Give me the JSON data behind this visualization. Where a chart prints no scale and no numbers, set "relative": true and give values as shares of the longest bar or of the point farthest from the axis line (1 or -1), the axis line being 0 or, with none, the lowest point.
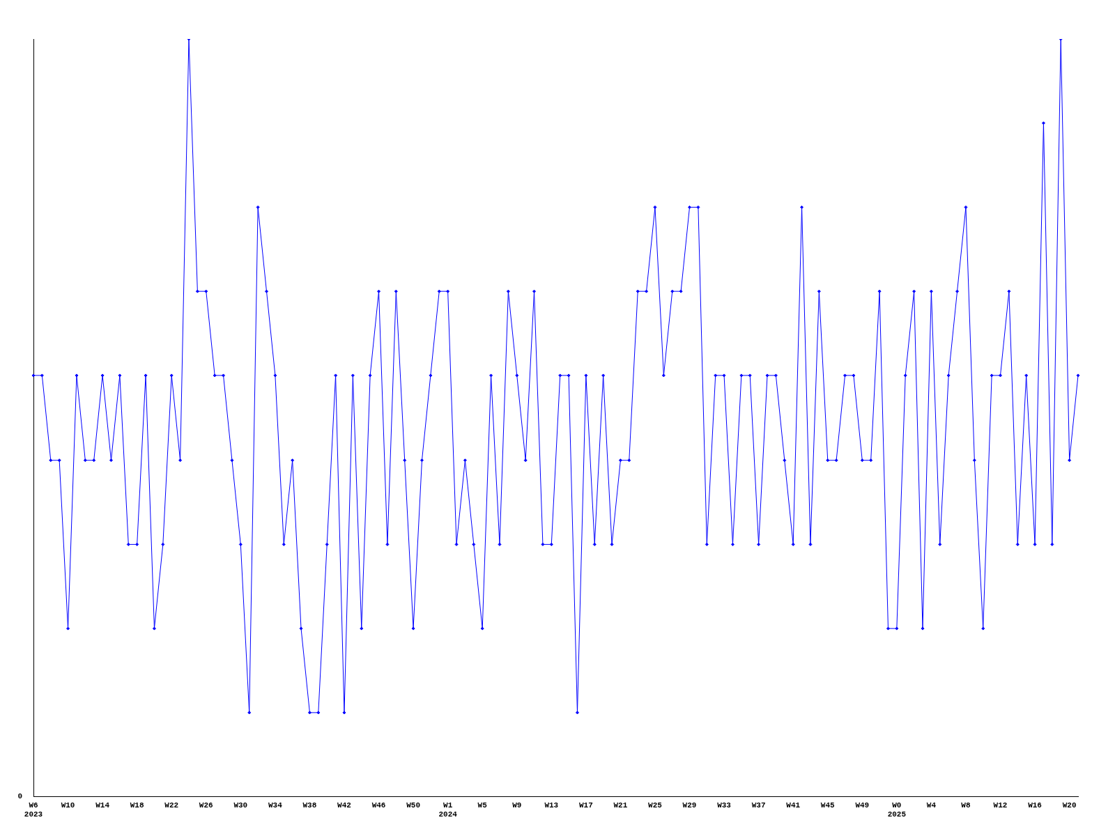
{
  "chart_data": {
    "type": "line",
    "relative": true,
    "color": "#0000ff",
    "marker": "diamond",
    "line_style": "solid",
    "grid": false,
    "legend": false,
    "annotations": [
      "0"
    ],
    "categories": [
      "W6\n2023",
      null,
      null,
      null,
      "W10",
      null,
      null,
      null,
      "W14",
      null,
      null,
      null,
      "W18",
      null,
      null,
      null,
      "W22",
      null,
      null,
      null,
      "W26",
      null,
      null,
      null,
      "W30",
      null,
      null,
      null,
      "W34",
      null,
      null,
      null,
      "W38",
      null,
      null,
      null,
      "W42",
      null,
      null,
      null,
      "W46",
      null,
      null,
      null,
      "W50",
      null,
      null,
      null,
      "W1\n2024",
      null,
      null,
      null,
      "W5",
      null,
      null,
      null,
      "W9",
      null,
      null,
      null,
      "W13",
      null,
      null,
      null,
      "W17",
      null,
      null,
      null,
      "W21",
      null,
      null,
      null,
      "W25",
      null,
      null,
      null,
      "W29",
      null,
      null,
      null,
      "W33",
      null,
      null,
      null,
      "W37",
      null,
      null,
      null,
      "W41",
      null,
      null,
      null,
      "W45",
      null,
      null,
      null,
      "W49",
      null,
      null,
      null,
      "W0\n2025",
      null,
      null,
      null,
      "W4",
      null,
      null,
      null,
      "W8",
      null,
      null,
      null,
      "W12",
      null,
      null,
      null,
      "W16",
      null,
      null,
      null,
      "W20",
      null
    ],
    "values": [
      0.556,
      0.556,
      0.444,
      0.444,
      0.222,
      0.556,
      0.444,
      0.444,
      0.556,
      0.444,
      0.556,
      0.333,
      0.333,
      0.556,
      0.222,
      0.333,
      0.556,
      0.444,
      1,
      0.667,
      0.667,
      0.556,
      0.556,
      0.444,
      0.333,
      0.111,
      0.778,
      0.667,
      0.556,
      0.333,
      0.444,
      0.222,
      0.111,
      0.111,
      0.333,
      0.556,
      0.111,
      0.556,
      0.222,
      0.556,
      0.667,
      0.333,
      0.667,
      0.444,
      0.222,
      0.444,
      0.556,
      0.667,
      0.667,
      0.333,
      0.444,
      0.333,
      0.222,
      0.556,
      0.333,
      0.667,
      0.556,
      0.444,
      0.667,
      0.333,
      0.333,
      0.556,
      0.556,
      0.111,
      0.556,
      0.333,
      0.556,
      0.333,
      0.444,
      0.444,
      0.667,
      0.667,
      0.778,
      0.556,
      0.667,
      0.667,
      0.778,
      0.778,
      0.333,
      0.556,
      0.556,
      0.333,
      0.556,
      0.556,
      0.333,
      0.556,
      0.556,
      0.444,
      0.333,
      0.778,
      0.333,
      0.667,
      0.444,
      0.444,
      0.556,
      0.556,
      0.444,
      0.444,
      0.667,
      0.222,
      0.222,
      0.556,
      0.667,
      0.222,
      0.667,
      0.333,
      0.556,
      0.667,
      0.778,
      0.444,
      0.222,
      0.556,
      0.556,
      0.667,
      0.333,
      0.556,
      0.333,
      0.889,
      0.333,
      1,
      0.444,
      0.556
    ]
  }
}
